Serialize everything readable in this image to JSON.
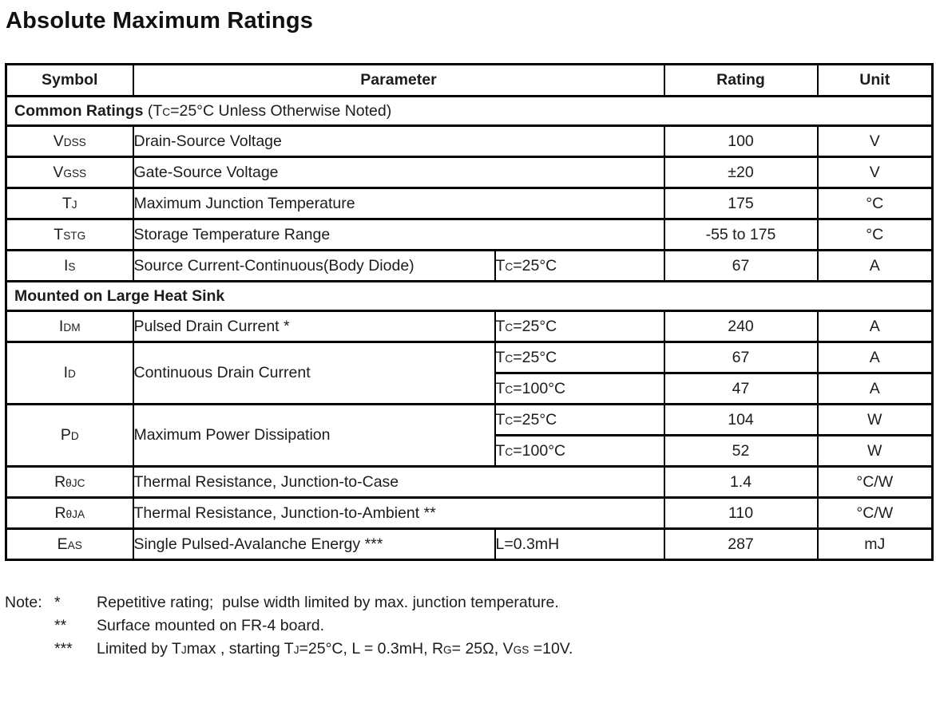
{
  "title": "Absolute Maximum Ratings",
  "colors": {
    "text": "#1c1c1c",
    "border": "#000000",
    "background": "#ffffff"
  },
  "table": {
    "headers": {
      "symbol": "Symbol",
      "parameter": "Parameter",
      "rating": "Rating",
      "unit": "Unit"
    },
    "sections": {
      "common": [
        {
          "b": "Common Ratings"
        },
        {
          "t": " (T"
        },
        {
          "s": "C"
        },
        {
          "t": "=25°C Unless Otherwise Noted)"
        }
      ],
      "heatsink": [
        {
          "b": "Mounted on Large Heat Sink"
        }
      ]
    },
    "rows": {
      "vdss": {
        "sym": [
          {
            "t": "V"
          },
          {
            "s": "DSS"
          }
        ],
        "param": [
          {
            "t": "Drain-Source Voltage"
          }
        ],
        "rating": "100",
        "unit": "V"
      },
      "vgss": {
        "sym": [
          {
            "t": "V"
          },
          {
            "s": "GSS"
          }
        ],
        "param": [
          {
            "t": "Gate-Source Voltage"
          }
        ],
        "rating": "±20",
        "unit": "V"
      },
      "tj": {
        "sym": [
          {
            "t": "T"
          },
          {
            "s": "J"
          }
        ],
        "param": [
          {
            "t": "Maximum Junction Temperature"
          }
        ],
        "rating": "175",
        "unit": "°C"
      },
      "tstg": {
        "sym": [
          {
            "t": "T"
          },
          {
            "s": "STG"
          }
        ],
        "param": [
          {
            "t": "Storage Temperature Range"
          }
        ],
        "rating": "-55 to 175",
        "unit": "°C"
      },
      "is": {
        "sym": [
          {
            "t": "I"
          },
          {
            "s": "S"
          }
        ],
        "param": [
          {
            "t": "Source Current-Continuous(Body Diode)"
          }
        ],
        "cond": [
          {
            "t": "T"
          },
          {
            "s": "C"
          },
          {
            "t": "=25°C"
          }
        ],
        "rating": "67",
        "unit": "A"
      },
      "idm": {
        "sym": [
          {
            "t": "I"
          },
          {
            "s": "DM"
          }
        ],
        "param": [
          {
            "t": "Pulsed Drain Current *"
          }
        ],
        "cond": [
          {
            "t": "T"
          },
          {
            "s": "C"
          },
          {
            "t": "=25°C"
          }
        ],
        "rating": "240",
        "unit": "A"
      },
      "id": {
        "sym": [
          {
            "t": "I"
          },
          {
            "s": "D"
          }
        ],
        "param": [
          {
            "t": "Continuous Drain Current"
          }
        ],
        "cond25": [
          {
            "t": "T"
          },
          {
            "s": "C"
          },
          {
            "t": "=25°C"
          }
        ],
        "rating25": "67",
        "unit25": "A",
        "cond100": [
          {
            "t": "T"
          },
          {
            "s": "C"
          },
          {
            "t": "=100°C"
          }
        ],
        "rating100": "47",
        "unit100": "A"
      },
      "pd": {
        "sym": [
          {
            "t": "P"
          },
          {
            "s": "D"
          }
        ],
        "param": [
          {
            "t": "Maximum Power Dissipation"
          }
        ],
        "cond25": [
          {
            "t": "T"
          },
          {
            "s": "C"
          },
          {
            "t": "=25°C"
          }
        ],
        "rating25": "104",
        "unit25": "W",
        "cond100": [
          {
            "t": "T"
          },
          {
            "s": "C"
          },
          {
            "t": "=100°C"
          }
        ],
        "rating100": "52",
        "unit100": "W"
      },
      "rthjc": {
        "sym": [
          {
            "t": "R"
          },
          {
            "s": "θJC"
          }
        ],
        "param": [
          {
            "t": "Thermal Resistance, Junction-to-Case"
          }
        ],
        "rating": "1.4",
        "unit": "°C/W"
      },
      "rthja": {
        "sym": [
          {
            "t": "R"
          },
          {
            "s": "θJA"
          }
        ],
        "param": [
          {
            "t": "Thermal Resistance, Junction-to-Ambient **"
          }
        ],
        "rating": "110",
        "unit": "°C/W"
      },
      "eas": {
        "sym": [
          {
            "t": "E"
          },
          {
            "s": "AS"
          }
        ],
        "param": [
          {
            "t": "Single Pulsed-Avalanche Energy ***"
          }
        ],
        "cond": [
          {
            "t": "L=0.3mH"
          }
        ],
        "rating": "287",
        "unit": "mJ"
      }
    }
  },
  "notes": {
    "label": "Note:",
    "items": [
      {
        "marker": "*",
        "text": [
          {
            "t": "Repetitive rating;  pulse width limited by max. junction temperature."
          }
        ]
      },
      {
        "marker": "**",
        "text": [
          {
            "t": "Surface mounted on FR-4 board."
          }
        ]
      },
      {
        "marker": "***",
        "text": [
          {
            "t": "Limited by T"
          },
          {
            "s": "J"
          },
          {
            "t": "max , starting T"
          },
          {
            "s": "J"
          },
          {
            "t": "=25°C, L = 0.3mH, R"
          },
          {
            "s": "G"
          },
          {
            "t": "= 25Ω, V"
          },
          {
            "s": "GS"
          },
          {
            "t": " =10V."
          }
        ]
      }
    ]
  }
}
